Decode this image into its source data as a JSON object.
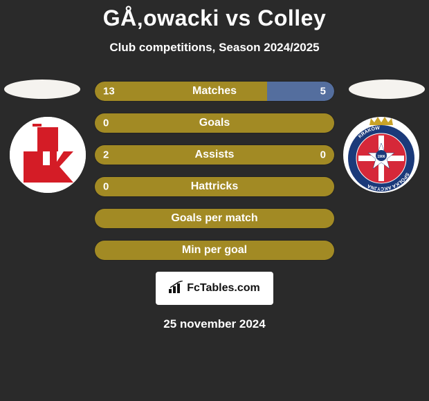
{
  "title": "GÅ‚owacki vs Colley",
  "subtitle": "Club competitions, Season 2024/2025",
  "date": "25 november 2024",
  "watermark": "FcTables.com",
  "colors": {
    "background": "#2a2a2a",
    "left_fill": "#a28a24",
    "right_fill": "#546e9e",
    "full_fill": "#a28a24",
    "text": "#ffffff",
    "oval": "#f5f3ef"
  },
  "logos": {
    "left": {
      "bg": "#ffffff",
      "shape_color": "#d41c26",
      "letters": "ŁKS"
    },
    "right": {
      "bg": "#ffffff",
      "crown": "#c9a227",
      "ring": "#1b3a7a",
      "star": "#ffffff",
      "inner_bg": "#d62839",
      "ring_text": "KRAKÓW SPÓŁKA AKCYJNA",
      "year": "1906"
    }
  },
  "bars": [
    {
      "label": "Matches",
      "left_value": "13",
      "right_value": "5",
      "left_pct": 72,
      "right_pct": 28,
      "left_color": "#a28a24",
      "right_color": "#546e9e"
    },
    {
      "label": "Goals",
      "left_value": "0",
      "right_value": "",
      "left_pct": 100,
      "right_pct": 0,
      "left_color": "#a28a24",
      "right_color": "#546e9e"
    },
    {
      "label": "Assists",
      "left_value": "2",
      "right_value": "0",
      "left_pct": 100,
      "right_pct": 0,
      "left_color": "#a28a24",
      "right_color": "#546e9e"
    },
    {
      "label": "Hattricks",
      "left_value": "0",
      "right_value": "",
      "left_pct": 100,
      "right_pct": 0,
      "left_color": "#a28a24",
      "right_color": "#546e9e"
    },
    {
      "label": "Goals per match",
      "left_value": "",
      "right_value": "",
      "left_pct": 100,
      "right_pct": 0,
      "left_color": "#a28a24",
      "right_color": "#546e9e"
    },
    {
      "label": "Min per goal",
      "left_value": "",
      "right_value": "",
      "left_pct": 100,
      "right_pct": 0,
      "left_color": "#a28a24",
      "right_color": "#546e9e"
    }
  ]
}
